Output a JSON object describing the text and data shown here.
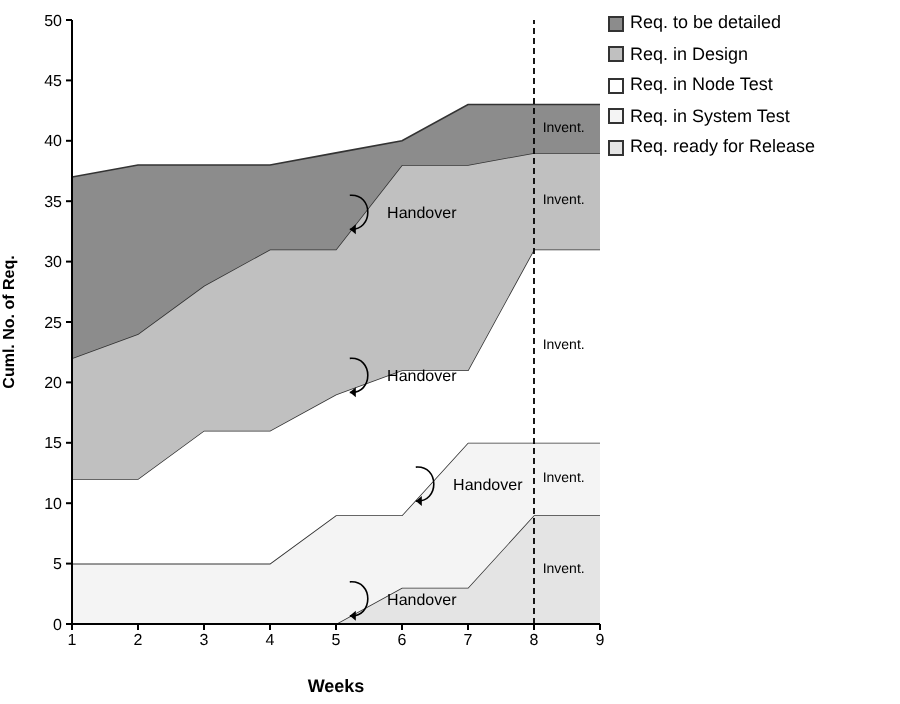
{
  "chart_data": {
    "type": "area",
    "stacked": true,
    "xlabel": "Weeks",
    "ylabel": "Cuml. No. of Req.",
    "x": [
      1,
      2,
      3,
      4,
      5,
      6,
      7,
      8,
      9
    ],
    "series": [
      {
        "name": "Req. ready for Release",
        "color": "#e4e4e4",
        "values": [
          0,
          0,
          0,
          0,
          0,
          3,
          3,
          9,
          9
        ]
      },
      {
        "name": "Req. in System Test",
        "color": "#f4f4f4",
        "values": [
          5,
          5,
          5,
          5,
          9,
          6,
          12,
          6,
          6
        ]
      },
      {
        "name": "Req. in Node Test",
        "color": "#ffffff",
        "values": [
          7,
          7,
          11,
          11,
          10,
          12,
          6,
          16,
          16
        ]
      },
      {
        "name": "Req. in Design",
        "color": "#c0c0c0",
        "values": [
          10,
          12,
          12,
          15,
          12,
          17,
          17,
          8,
          8
        ]
      },
      {
        "name": "Req. to be detailed",
        "color": "#8c8c8c",
        "values": [
          15,
          14,
          10,
          7,
          8,
          2,
          5,
          4,
          4
        ]
      }
    ],
    "xlim": [
      1,
      9
    ],
    "xticks": [
      1,
      2,
      3,
      4,
      5,
      6,
      7,
      8,
      9
    ],
    "ylim": [
      0,
      50
    ],
    "yticks": [
      0,
      5,
      10,
      15,
      20,
      25,
      30,
      35,
      40,
      45,
      50
    ],
    "grid": false,
    "legend": "right",
    "ref_lines": [
      {
        "axis": "x",
        "value": 8,
        "line_style": "dashed",
        "color": "#000000"
      }
    ],
    "annotations": [
      "Handover",
      "Handover",
      "Handover",
      "Handover",
      "Invent.",
      "Invent.",
      "Invent.",
      "Invent.",
      "Invent."
    ]
  }
}
